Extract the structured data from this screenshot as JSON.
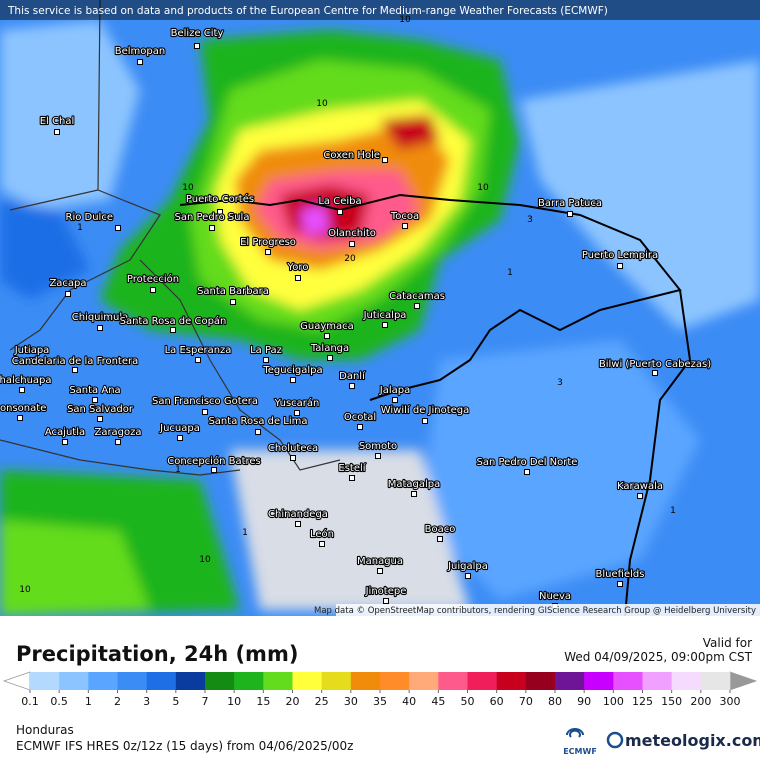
{
  "header": {
    "notice": "This service is based on data and products of the European Centre for Medium-range Weather Forecasts (ECMWF)"
  },
  "map": {
    "attribution": "Map data © OpenStreetMap contributors, rendering GIScience Research Group @ Heidelberg University",
    "places": [
      "Belize City",
      "Belmopan",
      "El Chal",
      "Coxen Hole",
      "Puerto Cortés",
      "La Ceiba",
      "Barra Patuca",
      "Rio Dulce",
      "San Pedro Sula",
      "Tocoa",
      "Olanchito",
      "El Progreso",
      "Puerto Lempira",
      "Yoro",
      "Zacapa",
      "Protección",
      "Santa Barbara",
      "Catacamas",
      "Chiquimula",
      "Juticalpa",
      "Santa Rosa de Copán",
      "Guaymaca",
      "Jutiapa",
      "La Esperanza",
      "La Paz",
      "Talanga",
      "Bilwi (Puerto Cabezas)",
      "Candelaria de la Frontera",
      "Tegucigalpa",
      "Chalchuapa",
      "Santa Ana",
      "Danlí",
      "Jalapa",
      "San Francisco Gotera",
      "Yuscarán",
      "San Salvador",
      "Sonsonate",
      "Wiwilí de Jinotega",
      "Santa Rosa de Lima",
      "Ocotal",
      "Acajutla",
      "Zaragoza",
      "Jucuapa",
      "Somoto",
      "Choluteca",
      "Concepción Batres",
      "Estelí",
      "San Pedro Del Norte",
      "Matagalpa",
      "Karawala",
      "Chinandega",
      "Boaco",
      "León",
      "Managua",
      "Juigalpa",
      "Bluefields",
      "Jinotepe",
      "Nueva"
    ],
    "contour_labels": [
      10,
      10,
      10,
      10,
      10,
      10,
      3,
      3,
      1,
      1,
      1,
      1,
      1,
      20
    ]
  },
  "footer": {
    "title": "Precipitation, 24h (mm)",
    "valid_label": "Valid for",
    "valid_time": "Wed 04/09/2025, 09:00pm CST",
    "region": "Honduras",
    "model": "ECMWF IFS HRES 0z/12z (15 days) from  04/06/2025/00z",
    "logo_ecmwf": "ECMWF",
    "logo_meteologix": "meteologix.com"
  },
  "legend": {
    "stops": [
      0.1,
      0.5,
      1,
      2,
      3,
      5,
      7,
      10,
      15,
      20,
      25,
      30,
      35,
      40,
      45,
      50,
      60,
      70,
      80,
      90,
      100,
      125,
      150,
      200,
      300
    ],
    "colors": [
      "#b3d9ff",
      "#8cc4ff",
      "#5aa5ff",
      "#3c8cf5",
      "#1e6ee6",
      "#0a3ca0",
      "#148c14",
      "#1eb41e",
      "#64dc1e",
      "#ffff3c",
      "#e6dc1e",
      "#f08c0a",
      "#ff8c28",
      "#ffaa78",
      "#ff5a8c",
      "#f01e5a",
      "#c8001e",
      "#96001e",
      "#6e1496",
      "#c800ff",
      "#e650ff",
      "#f0a0ff",
      "#f5dcff",
      "#e6e6e6"
    ]
  }
}
